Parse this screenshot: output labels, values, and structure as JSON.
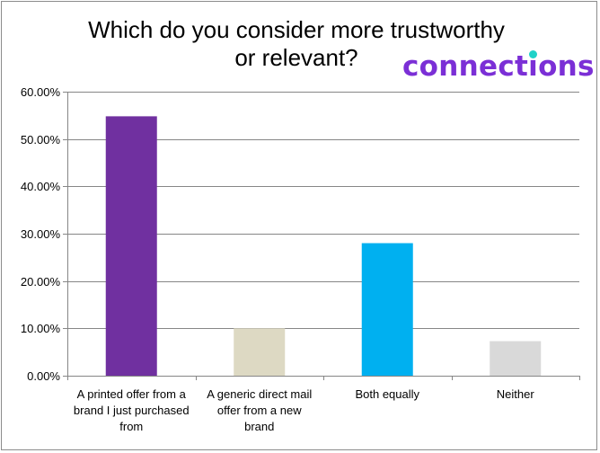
{
  "chart_data": {
    "type": "bar",
    "title": "Which do you consider more trustworthy or relevant?",
    "title_lines": [
      "Which do you consider more trustworthy",
      "or relevant?"
    ],
    "categories": [
      "A printed offer from a brand I just purchased from",
      "A generic direct mail offer from a new brand",
      "Both equally",
      "Neither"
    ],
    "category_lines": [
      [
        "A printed offer from a",
        "brand I just purchased",
        "from"
      ],
      [
        "A generic direct mail",
        "offer from a new",
        "brand"
      ],
      [
        "Both equally"
      ],
      [
        "Neither"
      ]
    ],
    "values": [
      0.548,
      0.1,
      0.28,
      0.073
    ],
    "bar_colors": [
      "#7030a0",
      "#ddd9c3",
      "#00b0f0",
      "#d9d9d9"
    ],
    "ylim": [
      0,
      0.6
    ],
    "yticks": [
      0,
      0.1,
      0.2,
      0.3,
      0.4,
      0.5,
      0.6
    ],
    "ytick_labels": [
      "0.00%",
      "10.00%",
      "20.00%",
      "30.00%",
      "40.00%",
      "50.00%",
      "60.00%"
    ],
    "xlabel": "",
    "ylabel": "",
    "grid": true,
    "legend": "none"
  },
  "logo": {
    "text_before": "connect",
    "text_i": "ı",
    "text_after": "ons",
    "color": "#7b2fd6",
    "dot_color": "#1fd2c8"
  }
}
